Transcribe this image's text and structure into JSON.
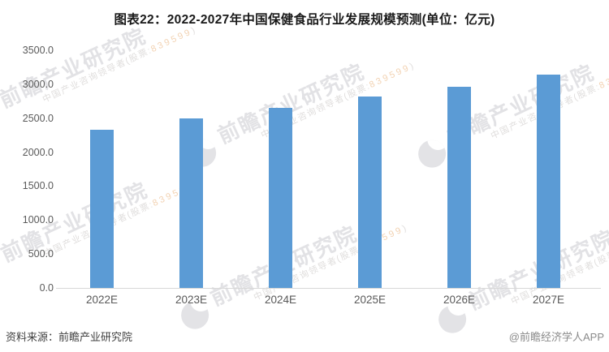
{
  "title": "图表22：2022-2027年中国保健食品行业发展规模预测(单位：亿元)",
  "chart_data": {
    "type": "bar",
    "title": "图表22：2022-2027年中国保健食品行业发展规模预测(单位：亿元)",
    "unit": "亿元",
    "categories": [
      "2022E",
      "2023E",
      "2024E",
      "2025E",
      "2026E",
      "2027E"
    ],
    "values": [
      2325,
      2495,
      2655,
      2815,
      2960,
      3145
    ],
    "xlabel": "",
    "ylabel": "",
    "ylim": [
      0,
      3500
    ],
    "ytick_step": 500,
    "yticks": [
      0,
      500,
      1000,
      1500,
      2000,
      2500,
      3000,
      3500
    ],
    "ytick_labels": [
      "0.0",
      "500.0",
      "1000.0",
      "1500.0",
      "2000.0",
      "2500.0",
      "3000.0",
      "3500.0"
    ],
    "grid": false,
    "legend": false,
    "bar_color": "#5B9BD5"
  },
  "watermark": {
    "brand_large": "前瞻产业研究院",
    "brand_small_prefix": "中国产业咨询领导者(股票:",
    "brand_small_digits": "839599",
    "brand_small_suffix": ")"
  },
  "footer": {
    "source": "资料来源：前瞻产业研究院",
    "credit": "@前瞻经济学人APP"
  },
  "colors": {
    "bar": "#5B9BD5",
    "axis_line": "#D8D8D8",
    "tick_text": "#595959",
    "title_text": "#1A1A1A",
    "watermark_gray": "#E2E2E5",
    "watermark_digits": "#F2D2B2"
  }
}
